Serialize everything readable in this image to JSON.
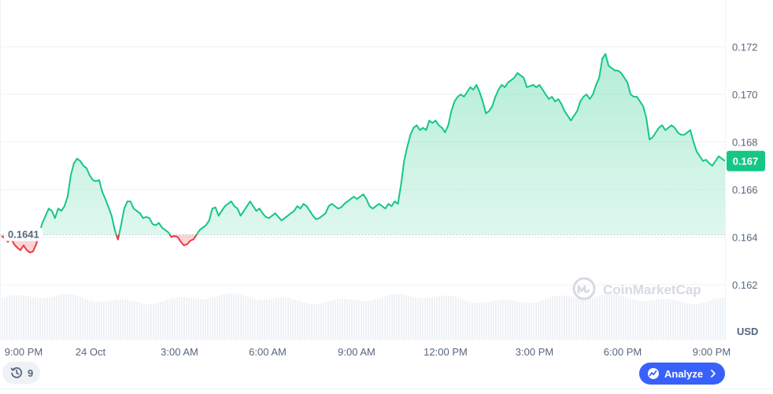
{
  "chart_data": {
    "type": "area",
    "currency": "USD",
    "y_ticks": [
      "0.172",
      "0.170",
      "0.168",
      "0.166",
      "0.164",
      "0.162"
    ],
    "x_ticks": [
      "9:00 PM",
      "24 Oct",
      "3:00 AM",
      "6:00 AM",
      "9:00 AM",
      "12:00 PM",
      "3:00 PM",
      "6:00 PM",
      "9:00 PM"
    ],
    "ylim": [
      0.1608,
      0.1737
    ],
    "reference_price": 0.1641,
    "reference_label": "0.1641",
    "current_price_label": "0.167",
    "grid": true,
    "colors": {
      "up": "#16c784",
      "down": "#ea3943",
      "current_badge": "#16c784"
    },
    "series": [
      {
        "values": [
          0.16405,
          0.16395,
          0.1638,
          0.16395,
          0.1637,
          0.16355,
          0.16345,
          0.16365,
          0.16345,
          0.16335,
          0.1634,
          0.1637,
          0.1642,
          0.1646,
          0.1649,
          0.1652,
          0.1651,
          0.1648,
          0.1652,
          0.1651,
          0.1653,
          0.1657,
          0.1666,
          0.1671,
          0.1673,
          0.1672,
          0.167,
          0.1669,
          0.1666,
          0.1664,
          0.16635,
          0.1664,
          0.1659,
          0.1656,
          0.16525,
          0.1649,
          0.1643,
          0.1639,
          0.1645,
          0.1652,
          0.1655,
          0.1655,
          0.1652,
          0.1651,
          0.165,
          0.1648,
          0.16485,
          0.1648,
          0.16455,
          0.1645,
          0.1646,
          0.1644,
          0.1643,
          0.1642,
          0.164,
          0.16405,
          0.164,
          0.1638,
          0.16365,
          0.1637,
          0.16385,
          0.1639,
          0.1641,
          0.1643,
          0.1644,
          0.1645,
          0.1647,
          0.1652,
          0.16525,
          0.1649,
          0.1651,
          0.1653,
          0.1654,
          0.1655,
          0.1653,
          0.1652,
          0.1649,
          0.1651,
          0.1653,
          0.1655,
          0.1653,
          0.1651,
          0.1652,
          0.165,
          0.16485,
          0.1648,
          0.1649,
          0.165,
          0.16485,
          0.1647,
          0.1648,
          0.1649,
          0.165,
          0.1651,
          0.1653,
          0.1652,
          0.1654,
          0.1653,
          0.1651,
          0.1649,
          0.16475,
          0.1648,
          0.1649,
          0.165,
          0.1653,
          0.1654,
          0.1653,
          0.1652,
          0.16525,
          0.1654,
          0.1655,
          0.1656,
          0.1657,
          0.1656,
          0.1657,
          0.1658,
          0.1656,
          0.1653,
          0.1652,
          0.1653,
          0.1654,
          0.1653,
          0.1652,
          0.1654,
          0.1653,
          0.1655,
          0.1654,
          0.1662,
          0.1672,
          0.1678,
          0.1683,
          0.1686,
          0.1687,
          0.1685,
          0.1686,
          0.1685,
          0.1689,
          0.1688,
          0.1689,
          0.1687,
          0.1686,
          0.1684,
          0.1687,
          0.1693,
          0.1697,
          0.1699,
          0.17,
          0.1699,
          0.1701,
          0.1703,
          0.1702,
          0.1704,
          0.1701,
          0.1697,
          0.1692,
          0.1693,
          0.1695,
          0.1699,
          0.1702,
          0.1704,
          0.1703,
          0.1705,
          0.1706,
          0.1707,
          0.1709,
          0.1708,
          0.1707,
          0.1703,
          0.17035,
          0.1704,
          0.1703,
          0.1704,
          0.1702,
          0.17,
          0.1698,
          0.1699,
          0.1697,
          0.1698,
          0.1696,
          0.1693,
          0.1691,
          0.1689,
          0.1691,
          0.1693,
          0.1697,
          0.1699,
          0.17,
          0.1698,
          0.17,
          0.1704,
          0.1707,
          0.1715,
          0.1717,
          0.1712,
          0.1711,
          0.171,
          0.171,
          0.1709,
          0.1707,
          0.1705,
          0.17,
          0.1699,
          0.1699,
          0.1697,
          0.1695,
          0.169,
          0.1681,
          0.1682,
          0.1684,
          0.1686,
          0.1687,
          0.1685,
          0.1686,
          0.1687,
          0.1686,
          0.1684,
          0.1683,
          0.1683,
          0.1684,
          0.1685,
          0.168,
          0.1676,
          0.1674,
          0.1672,
          0.16725,
          0.1671,
          0.167,
          0.1672,
          0.1674,
          0.1673,
          0.1672
        ]
      }
    ]
  },
  "watermark": {
    "brand": "CoinMarketCap"
  },
  "controls": {
    "history_count": "9",
    "analyze_label": "Analyze"
  },
  "icons": {
    "history": "history-clock-icon",
    "analyze": "analyze-chart-icon",
    "chevron": "chevron-right-icon",
    "brand": "coinmarketcap-logo-icon"
  }
}
